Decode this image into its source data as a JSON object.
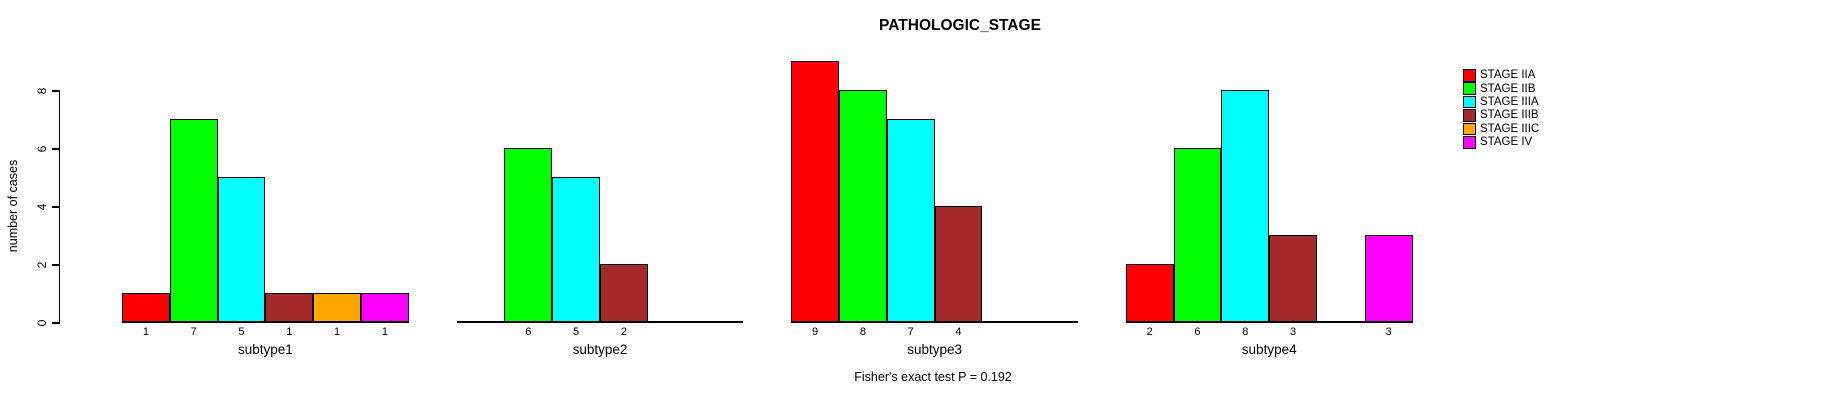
{
  "chart_data": {
    "type": "bar",
    "title": "PATHOLOGIC_STAGE",
    "ylabel": "number of cases",
    "annotation": "Fisher's exact test P = 0.192",
    "yticks": [
      0,
      2,
      4,
      6,
      8
    ],
    "ylim": [
      0,
      9
    ],
    "grid": false,
    "legend_position": "right",
    "stages": [
      {
        "label": "STAGE IIA",
        "color": "#ff0000"
      },
      {
        "label": "STAGE IIB",
        "color": "#00ff00"
      },
      {
        "label": "STAGE IIIA",
        "color": "#00ffff"
      },
      {
        "label": "STAGE IIIB",
        "color": "#a52a2a"
      },
      {
        "label": "STAGE IIIC",
        "color": "#ffa500"
      },
      {
        "label": "STAGE IV",
        "color": "#ff00ff"
      }
    ],
    "groups": [
      {
        "label": "subtype1",
        "values": [
          1,
          7,
          5,
          1,
          1,
          1
        ]
      },
      {
        "label": "subtype2",
        "values": [
          0,
          6,
          5,
          2,
          0,
          0
        ]
      },
      {
        "label": "subtype3",
        "values": [
          9,
          8,
          7,
          4,
          0,
          0
        ]
      },
      {
        "label": "subtype4",
        "values": [
          2,
          6,
          8,
          3,
          0,
          3
        ]
      }
    ]
  }
}
